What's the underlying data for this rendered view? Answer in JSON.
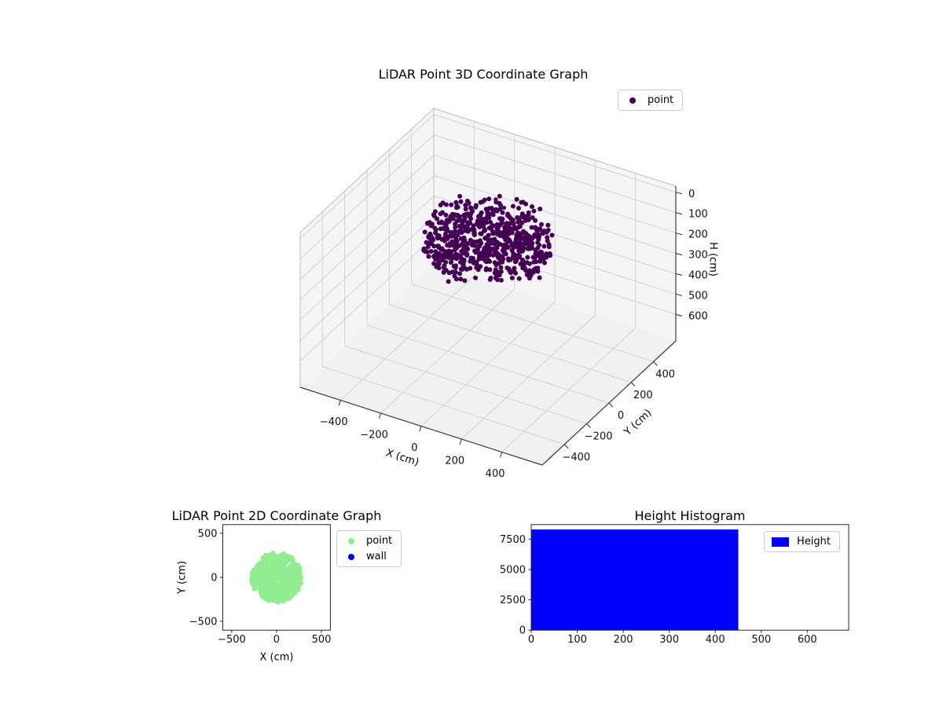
{
  "chart_data": [
    {
      "type": "scatter3d",
      "title": "LiDAR Point 3D Coordinate Graph",
      "xlabel": "X (cm)",
      "ylabel": "Y (cm)",
      "zlabel": "H (cm)",
      "xlim": [
        -600,
        600
      ],
      "ylim": [
        -600,
        600
      ],
      "zlim": [
        -30,
        730
      ],
      "z_axis_inverted": true,
      "x_ticks": [
        -400,
        -200,
        0,
        200,
        400
      ],
      "y_ticks": [
        -400,
        -200,
        0,
        200,
        400
      ],
      "z_ticks": [
        0,
        100,
        200,
        300,
        400,
        500,
        600
      ],
      "grid": true,
      "legend": {
        "position": "upper right",
        "entries": [
          {
            "label": "point",
            "color": "#440154",
            "marker": "dot"
          }
        ]
      },
      "series": [
        {
          "name": "point",
          "marker": "dot",
          "color": "#440154",
          "distribution": "disc",
          "center": {
            "x": 0,
            "y": 0,
            "h": 125
          },
          "radius_cm": 280,
          "h_range": [
            45,
            205
          ],
          "count": 700,
          "outliers": [
            {
              "x": -100,
              "y": 250,
              "h": 80
            },
            {
              "x": -20,
              "y": 180,
              "h": 60
            }
          ]
        }
      ]
    },
    {
      "type": "scatter",
      "title": "LiDAR Point 2D Coordinate Graph",
      "xlabel": "X (cm)",
      "ylabel": "Y (cm)",
      "xlim": [
        -600,
        600
      ],
      "ylim": [
        -600,
        600
      ],
      "x_ticks": [
        -500,
        0,
        500
      ],
      "y_ticks": [
        -500,
        0,
        500
      ],
      "grid": false,
      "legend": {
        "position": "outside upper right",
        "entries": [
          {
            "label": "point",
            "color": "#90ee90",
            "marker": "dot"
          },
          {
            "label": "wall",
            "color": "#0000ff",
            "marker": "dot"
          }
        ]
      },
      "series": [
        {
          "name": "point",
          "marker": "dot",
          "color": "#90ee90",
          "distribution": "disc",
          "center": {
            "x": 0,
            "y": 0
          },
          "radius_cm": 280,
          "count": 550
        },
        {
          "name": "wall",
          "marker": "dot",
          "color": "#0000ff",
          "count": 0
        }
      ]
    },
    {
      "type": "bar",
      "title": "Height Histogram",
      "xlabel": "",
      "ylabel": "",
      "xlim": [
        0,
        690
      ],
      "ylim": [
        0,
        8700
      ],
      "x_ticks": [
        0,
        100,
        200,
        300,
        400,
        500,
        600
      ],
      "y_ticks": [
        0,
        2500,
        5000,
        7500
      ],
      "grid": false,
      "legend": {
        "position": "upper right",
        "entries": [
          {
            "label": "Height",
            "color": "#0000ff",
            "marker": "patch"
          }
        ]
      },
      "bars": [
        {
          "x_start": 0,
          "x_end": 450,
          "value": 8300,
          "color": "#0000ff"
        }
      ]
    }
  ]
}
